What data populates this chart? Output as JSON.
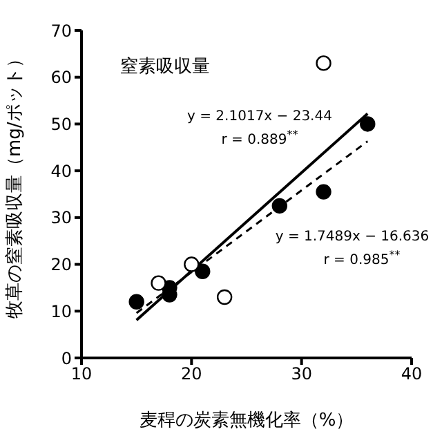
{
  "chart_data": {
    "type": "scatter",
    "xlabel": "麦稈の炭素無機化率（%）",
    "ylabel": "牧草の窒素吸収量（mg/ポット）",
    "xlim": [
      10,
      40
    ],
    "xticks": [
      10,
      20,
      30,
      40
    ],
    "ylim": [
      0,
      70
    ],
    "yticks": [
      0,
      10,
      20,
      30,
      40,
      50,
      60,
      70
    ],
    "marker": "circle",
    "annotations": [
      "窒素吸収量",
      "y = 2.1017x − 23.44",
      "r = 0.889$^{**}$",
      "y = 1.7489x − 16.636",
      "r = 0.985$^{**}$"
    ],
    "series": [
      {
        "color": "#000000",
        "x": [
          15,
          18,
          18,
          21,
          28,
          32,
          36
        ],
        "values": [
          12,
          15,
          13.5,
          18.5,
          32.5,
          35.5,
          50
        ]
      },
      {
        "color": "#ffffff",
        "x": [
          17,
          20,
          23,
          32
        ],
        "values": [
          16,
          20,
          13,
          63
        ]
      },
      {
        "type": "line",
        "line_style": "solid",
        "marker": "none",
        "color": "#000000",
        "x": [
          15,
          36
        ],
        "values": [
          8.1,
          52.2
        ]
      },
      {
        "type": "line",
        "line_style": "dashed",
        "marker": "none",
        "color": "#000000",
        "x": [
          15,
          36
        ],
        "values": [
          9.6,
          46.3
        ]
      }
    ]
  }
}
